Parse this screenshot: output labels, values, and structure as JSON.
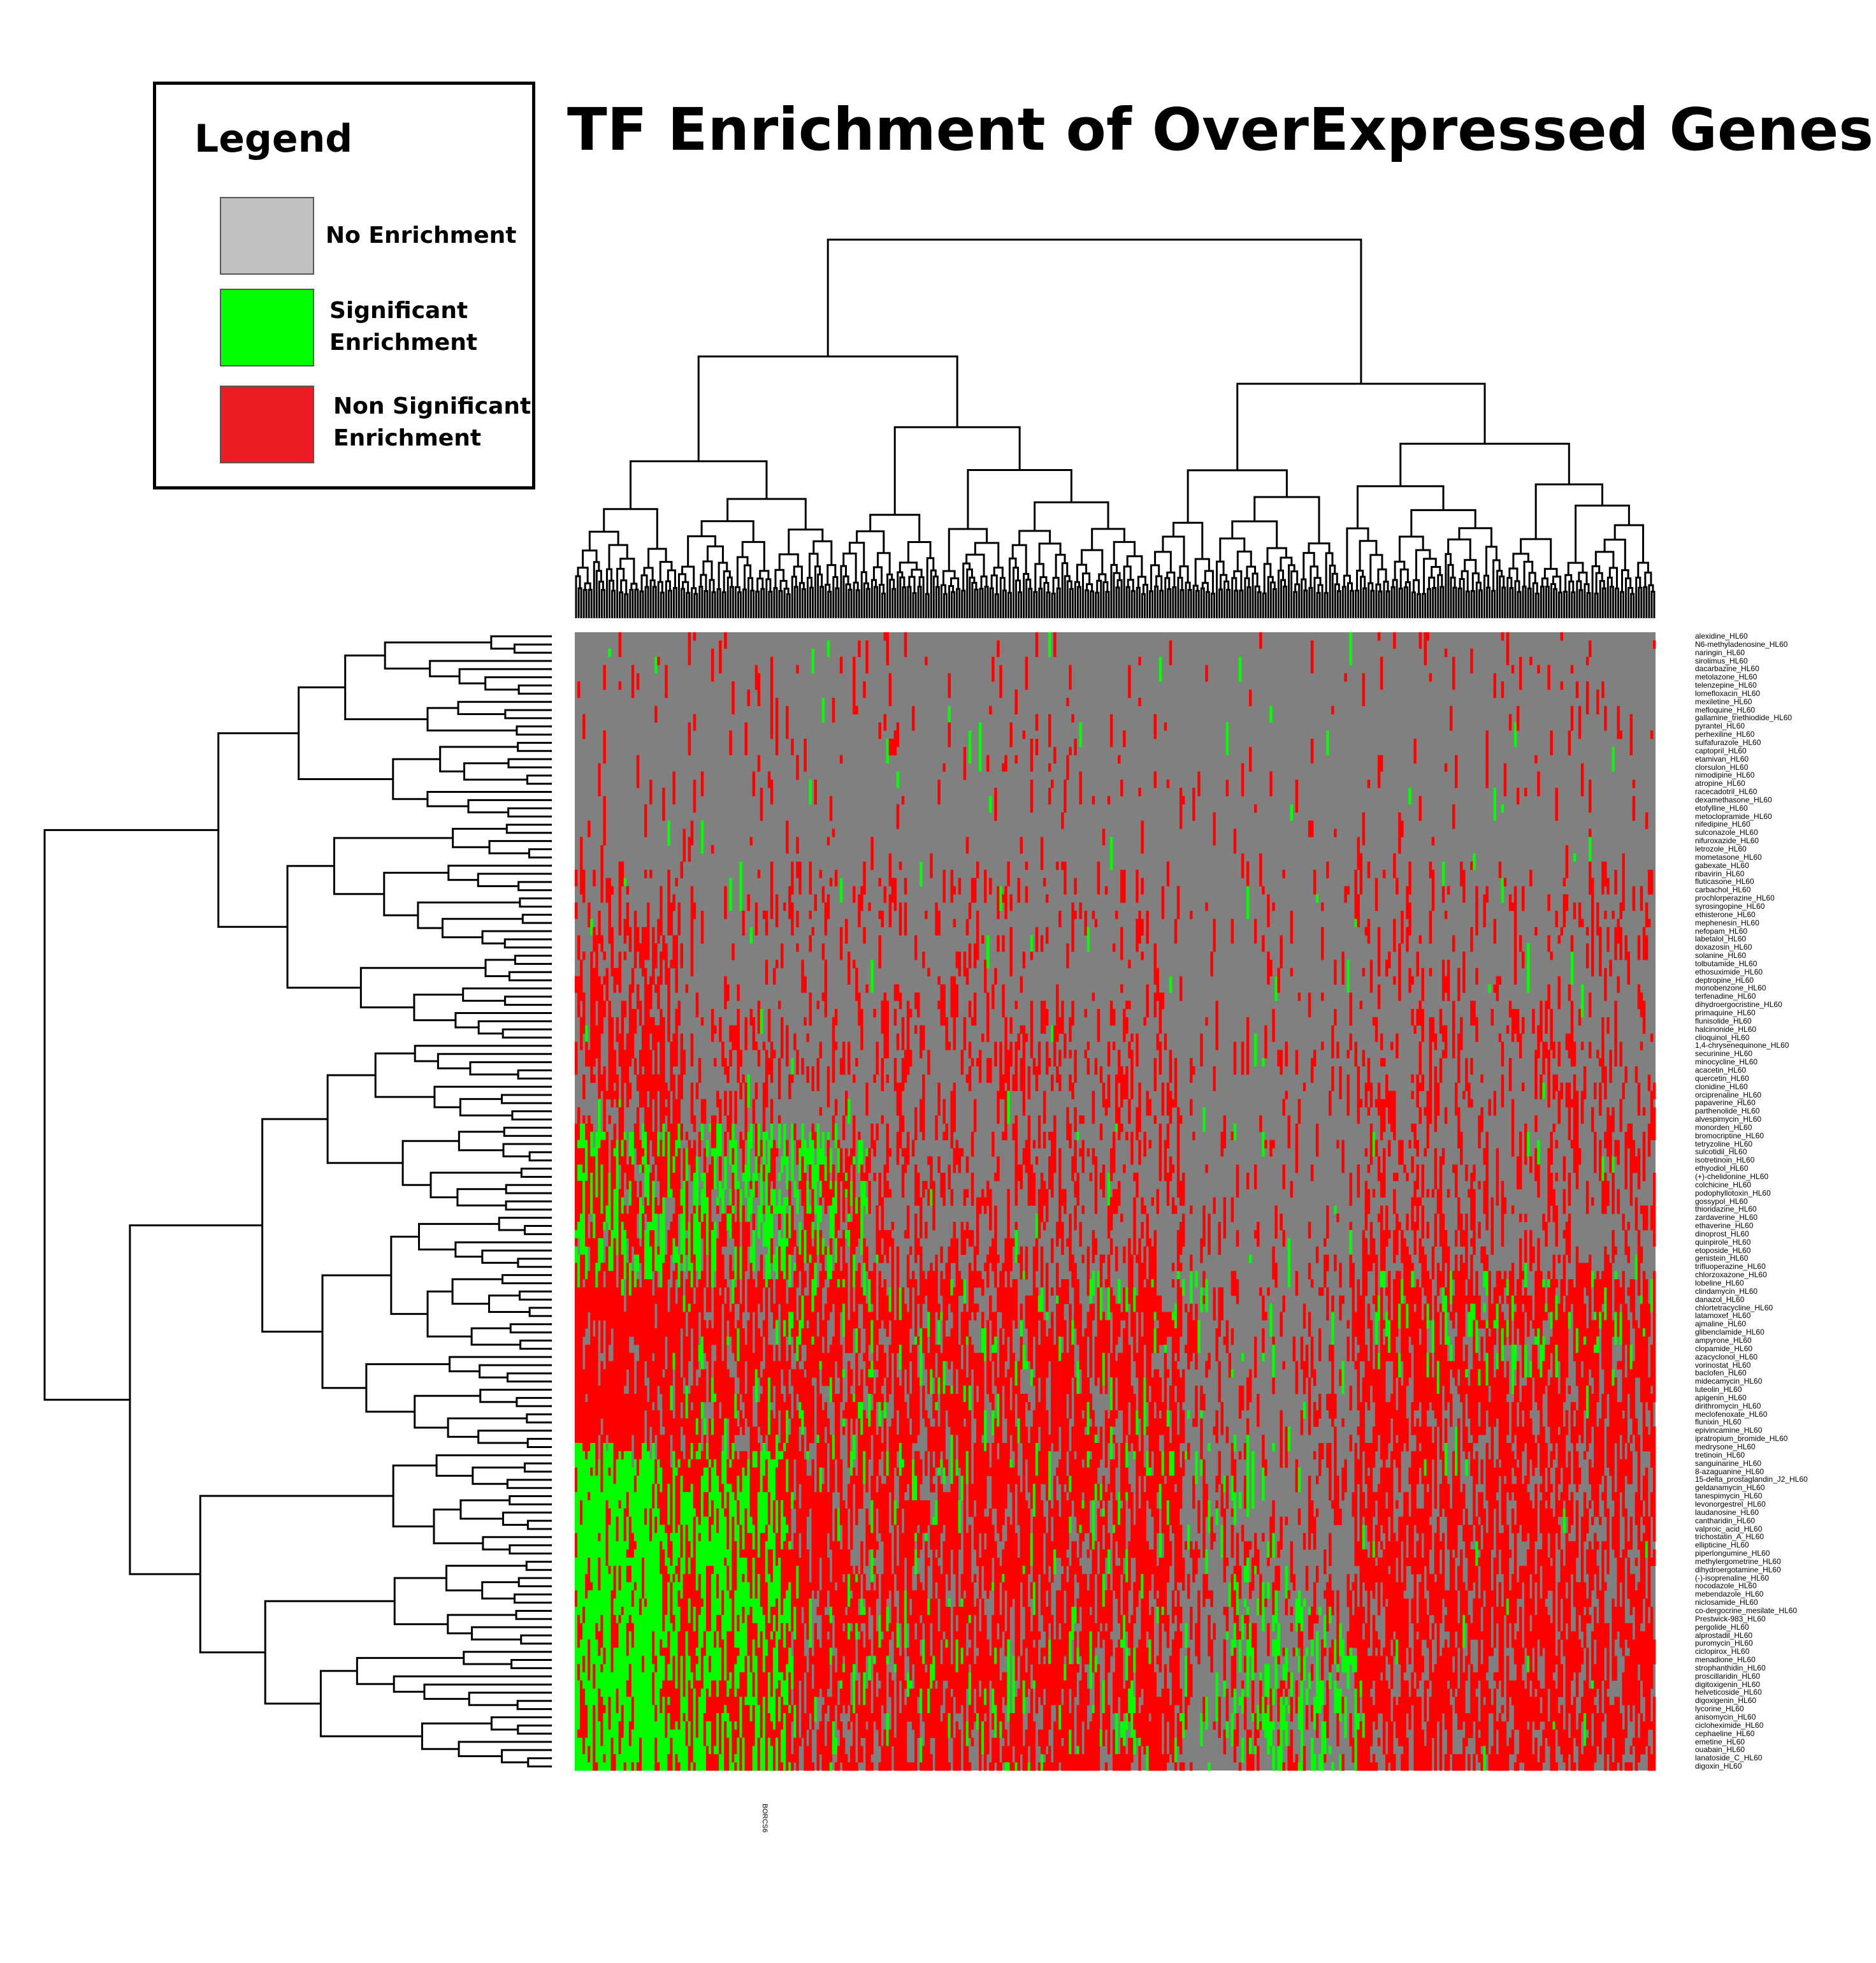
{
  "chart_data": {
    "type": "heatmap",
    "title": "TF Enrichment of OverExpressed Genes",
    "xlabel": "",
    "ylabel": "",
    "legend": {
      "title": "Legend",
      "placement": "top-left",
      "entries": [
        {
          "label": "No Enrichment",
          "color": "#c0c0c0"
        },
        {
          "label": "Significant\nEnrichment",
          "color": "#00ff00"
        },
        {
          "label": "Non Significant\nEnrichment",
          "color": "#ed1c24"
        }
      ]
    },
    "colors": {
      "no_enrichment": "#808080",
      "significant": "#00ff00",
      "non_significant": "#ff0000"
    },
    "dendrograms": {
      "rows": true,
      "columns": true
    },
    "rows": [
      "alexidine_HL60",
      "N6-methyladenosine_HL60",
      "naringin_HL60",
      "sirolimus_HL60",
      "dacarbazine_HL60",
      "metolazone_HL60",
      "telenzepine_HL60",
      "lomefloxacin_HL60",
      "mexiletine_HL60",
      "mefloquine_HL60",
      "gallamine_triethiodide_HL60",
      "pyrantel_HL60",
      "perhexiline_HL60",
      "sulfafurazole_HL60",
      "captopril_HL60",
      "etamivan_HL60",
      "clorsulon_HL60",
      "nimodipine_HL60",
      "atropine_HL60",
      "racecadotril_HL60",
      "dexamethasone_HL60",
      "etofylline_HL60",
      "metoclopramide_HL60",
      "nifedipine_HL60",
      "sulconazole_HL60",
      "nifuroxazide_HL60",
      "letrozole_HL60",
      "mometasone_HL60",
      "gabexate_HL60",
      "ribavirin_HL60",
      "fluticasone_HL60",
      "carbachol_HL60",
      "prochlorperazine_HL60",
      "syrosingopine_HL60",
      "ethisterone_HL60",
      "mephenesin_HL60",
      "nefopam_HL60",
      "labetalol_HL60",
      "doxazosin_HL60",
      "solanine_HL60",
      "tolbutamide_HL60",
      "ethosuximide_HL60",
      "deptropine_HL60",
      "monobenzone_HL60",
      "terfenadine_HL60",
      "dihydroergocristine_HL60",
      "primaquine_HL60",
      "flunisolide_HL60",
      "halcinonide_HL60",
      "clioquinol_HL60",
      "1,4-chrysenequinone_HL60",
      "securinine_HL60",
      "minocycline_HL60",
      "acacetin_HL60",
      "quercetin_HL60",
      "clonidine_HL60",
      "orciprenaline_HL60",
      "papaverine_HL60",
      "parthenolide_HL60",
      "alvespimycin_HL60",
      "monorden_HL60",
      "bromocriptine_HL60",
      "tetryzoline_HL60",
      "sulcotidil_HL60",
      "isotretinoin_HL60",
      "ethyodiol_HL60",
      "(+)-chelidonine_HL60",
      "colchicine_HL60",
      "podophyllotoxin_HL60",
      "gossypol_HL60",
      "thioridazine_HL60",
      "zardaverine_HL60",
      "ethaverine_HL60",
      "dinoprost_HL60",
      "quinpirole_HL60",
      "etoposide_HL60",
      "genistein_HL60",
      "trifluoperazine_HL60",
      "chlorzoxazone_HL60",
      "lobeline_HL60",
      "clindamycin_HL60",
      "danazol_HL60",
      "chlortetracycline_HL60",
      "latamoxef_HL60",
      "ajmaline_HL60",
      "glibenclamide_HL60",
      "ampyrone_HL60",
      "clopamide_HL60",
      "azacyclonol_HL60",
      "vorinostat_HL60",
      "baclofen_HL60",
      "midecamycin_HL60",
      "luteolin_HL60",
      "apigenin_HL60",
      "dirithromycin_HL60",
      "meclofenoxate_HL60",
      "flunixin_HL60",
      "epivincamine_HL60",
      "ipratropium_bromide_HL60",
      "medrysone_HL60",
      "tretinoin_HL60",
      "sanguinarine_HL60",
      "8-azaguanine_HL60",
      "15-delta_prostaglandin_J2_HL60",
      "geldanamycin_HL60",
      "tanespimycin_HL60",
      "levonorgestrel_HL60",
      "laudanosine_HL60",
      "cantharidin_HL60",
      "valproic_acid_HL60",
      "trichostatin_A_HL60",
      "ellipticine_HL60",
      "piperlongumine_HL60",
      "methylergometrine_HL60",
      "dihydroergotamine_HL60",
      "(-)-isoprenaline_HL60",
      "nocodazole_HL60",
      "mebendazole_HL60",
      "niclosamide_HL60",
      "co-dergocrine_mesilate_HL60",
      "Prestwick-983_HL60",
      "pergolide_HL60",
      "alprostadil_HL60",
      "puromycin_HL60",
      "ciclopirox_HL60",
      "menadione_HL60",
      "strophanthidin_HL60",
      "proscillaridin_HL60",
      "digitoxigenin_HL60",
      "helveticoside_HL60",
      "digoxigenin_HL60",
      "lycorine_HL60",
      "anisomycin_HL60",
      "cicloheximide_HL60",
      "cephaeline_HL60",
      "emetine_HL60",
      "ouabain_HL60",
      "lanatoside_C_HL60",
      "digoxin_HL60"
    ],
    "columns_visible": [
      "BORCS6"
    ]
  }
}
